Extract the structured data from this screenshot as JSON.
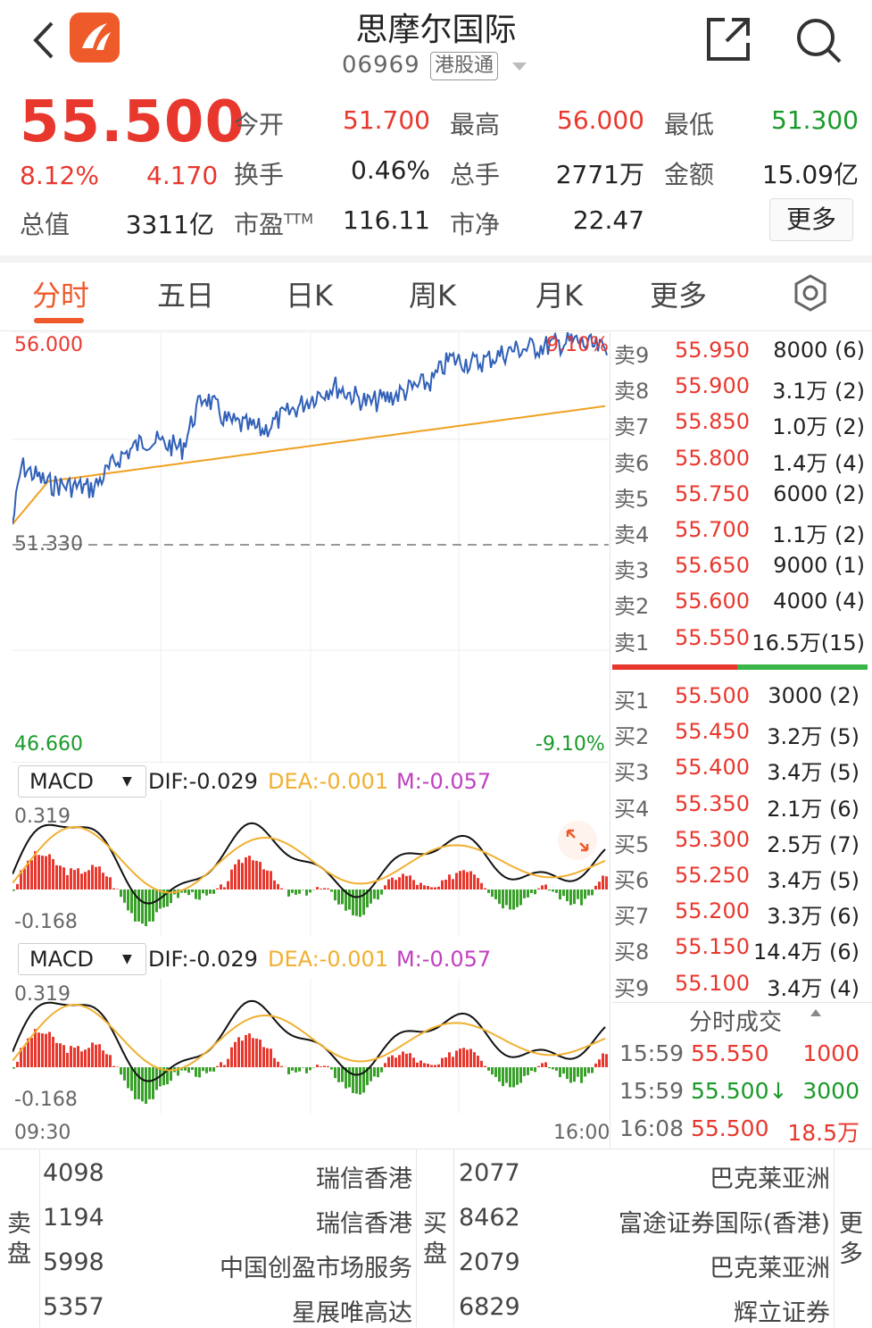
{
  "header": {
    "title": "思摩尔国际",
    "code": "06969",
    "badge": "港股通"
  },
  "quote": {
    "price": "55.500",
    "pct": "8.12%",
    "change": "4.170",
    "rows": [
      [
        {
          "l": "今开",
          "v": "51.700",
          "c": "red"
        },
        {
          "l": "最高",
          "v": "56.000",
          "c": "red"
        },
        {
          "l": "最低",
          "v": "51.300",
          "c": "green"
        }
      ],
      [
        {
          "l": "换手",
          "v": "0.46%",
          "c": ""
        },
        {
          "l": "总手",
          "v": "2771万",
          "c": ""
        },
        {
          "l": "金额",
          "v": "15.09亿",
          "c": ""
        }
      ]
    ],
    "mcap_label": "总值",
    "mcap": "3311亿",
    "pe_label": "市盈",
    "pe_sup": "TTM",
    "pe": "116.11",
    "pb_label": "市净",
    "pb": "22.47",
    "more": "更多"
  },
  "tabs": [
    "分时",
    "五日",
    "日K",
    "周K",
    "月K",
    "更多"
  ],
  "chart": {
    "high": "56.000",
    "high_pct": "9.10%",
    "prev_close": "51.330",
    "low": "46.660",
    "low_pct": "-9.10%",
    "time_start": "09:30",
    "time_end": "16:00"
  },
  "macd": {
    "name": "MACD",
    "dif": "DIF:-0.029",
    "dea": "DEA:-0.001",
    "m": "M:-0.057",
    "top": "0.319",
    "bottom": "-0.168"
  },
  "asks": [
    {
      "l": "卖9",
      "p": "55.950",
      "v": "8000 (6)"
    },
    {
      "l": "卖8",
      "p": "55.900",
      "v": "3.1万 (2)"
    },
    {
      "l": "卖7",
      "p": "55.850",
      "v": "1.0万 (2)"
    },
    {
      "l": "卖6",
      "p": "55.800",
      "v": "1.4万 (4)"
    },
    {
      "l": "卖5",
      "p": "55.750",
      "v": "6000 (2)"
    },
    {
      "l": "卖4",
      "p": "55.700",
      "v": "1.1万 (2)"
    },
    {
      "l": "卖3",
      "p": "55.650",
      "v": "9000 (1)"
    },
    {
      "l": "卖2",
      "p": "55.600",
      "v": "4000 (4)"
    },
    {
      "l": "卖1",
      "p": "55.550",
      "v": "16.5万(15)"
    }
  ],
  "bids": [
    {
      "l": "买1",
      "p": "55.500",
      "v": "3000 (2)"
    },
    {
      "l": "买2",
      "p": "55.450",
      "v": "3.2万 (5)"
    },
    {
      "l": "买3",
      "p": "55.400",
      "v": "3.4万 (5)"
    },
    {
      "l": "买4",
      "p": "55.350",
      "v": "2.1万 (6)"
    },
    {
      "l": "买5",
      "p": "55.300",
      "v": "2.5万 (7)"
    },
    {
      "l": "买6",
      "p": "55.250",
      "v": "3.4万 (5)"
    },
    {
      "l": "买7",
      "p": "55.200",
      "v": "3.3万 (6)"
    },
    {
      "l": "买8",
      "p": "55.150",
      "v": "14.4万 (6)"
    },
    {
      "l": "买9",
      "p": "55.100",
      "v": "3.4万 (4)"
    }
  ],
  "trades_title": "分时成交",
  "trades": [
    {
      "t": "15:59",
      "p": "55.550",
      "v": "1000"
    },
    {
      "t": "15:59",
      "p": "55.500↓",
      "v": "3000"
    },
    {
      "t": "16:08",
      "p": "55.500",
      "v": "18.5万"
    }
  ],
  "brokers": {
    "sell_label": [
      "卖",
      "盘"
    ],
    "buy_label": [
      "买",
      "盘"
    ],
    "more_label": [
      "更",
      "多"
    ],
    "sell": [
      {
        "c": "4098",
        "n": "瑞信香港"
      },
      {
        "c": "1194",
        "n": "瑞信香港"
      },
      {
        "c": "5998",
        "n": "中国创盈市场服务"
      },
      {
        "c": "5357",
        "n": "星展唯高达"
      }
    ],
    "buy": [
      {
        "c": "2077",
        "n": "巴克莱亚洲"
      },
      {
        "c": "8462",
        "n": "富途证券国际(香港)"
      },
      {
        "c": "2079",
        "n": "巴克莱亚洲"
      },
      {
        "c": "6829",
        "n": "辉立证券"
      }
    ]
  },
  "colors": {
    "up": "#e8382e",
    "down": "#1a9a2a",
    "price_line": "#3060b8",
    "avg_line": "#f0a020",
    "accent": "#ef5a2a"
  }
}
